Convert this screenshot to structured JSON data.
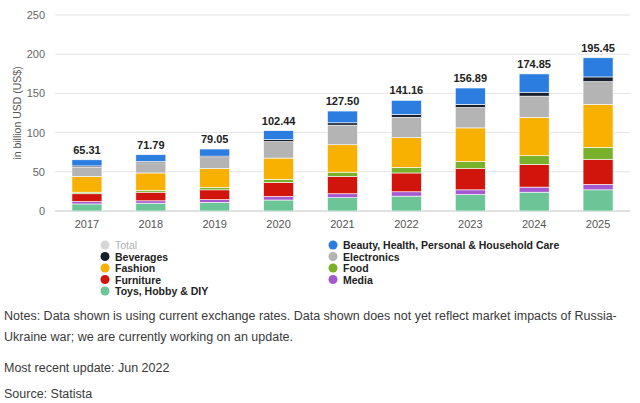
{
  "chart_data": {
    "type": "bar",
    "stacked": true,
    "data_labels": true,
    "grid": true,
    "legend": "bottom",
    "y_label": "in billion USD (US$)",
    "categories": [
      "2017",
      "2018",
      "2019",
      "2020",
      "2021",
      "2022",
      "2023",
      "2024",
      "2025"
    ],
    "ylim": [
      0,
      250
    ],
    "yticks": [
      0,
      50,
      100,
      150,
      200,
      250
    ],
    "total": {
      "name": "Total",
      "color": "#d6d6d6",
      "values": [
        65.31,
        71.79,
        79.05,
        102.44,
        127.5,
        141.16,
        156.89,
        174.85,
        195.45
      ],
      "value_labels": [
        "65.31",
        "71.79",
        "79.05",
        "102.44",
        "127.50",
        "141.16",
        "156.89",
        "174.85",
        "195.45"
      ]
    },
    "series": [
      {
        "name": "Beauty, Health, Personal & Household Care",
        "color": "#2b7de0",
        "values": [
          7.81,
          8.59,
          9.05,
          11.44,
          15,
          18.16,
          20.89,
          23.35,
          24.45
        ]
      },
      {
        "name": "Beverages",
        "color": "#18202e",
        "values": [
          1.5,
          1.7,
          2,
          2.5,
          3,
          3.5,
          4,
          5,
          6
        ]
      },
      {
        "name": "Electronics",
        "color": "#b4b4b4",
        "values": [
          12,
          13,
          14,
          21,
          25,
          26,
          26,
          27,
          29
        ]
      },
      {
        "name": "Fashion",
        "color": "#f8b100",
        "values": [
          20,
          22,
          24,
          27,
          35,
          38,
          43,
          49,
          55
        ]
      },
      {
        "name": "Food",
        "color": "#79b12a",
        "values": [
          2,
          2.5,
          3,
          4,
          5.5,
          7,
          9,
          11,
          15
        ]
      },
      {
        "name": "Furniture",
        "color": "#d1150d",
        "values": [
          10,
          11,
          12.5,
          18,
          22,
          24,
          27,
          29,
          32
        ]
      },
      {
        "name": "Media",
        "color": "#a559d0",
        "values": [
          3,
          3,
          3.5,
          4.5,
          5,
          5.5,
          6,
          6.5,
          7
        ]
      },
      {
        "name": "Toys, Hobby & DIY",
        "color": "#6cc597",
        "values": [
          9,
          10,
          11,
          14,
          17,
          19,
          21,
          24,
          27
        ]
      }
    ],
    "notes": [
      "Notes: Data shown is using current exchange rates. Data shown does not yet reflect market impacts of Russia-Ukraine war; we are currently working on an update.",
      "Most recent update: Jun 2022",
      "Source: Statista"
    ]
  }
}
